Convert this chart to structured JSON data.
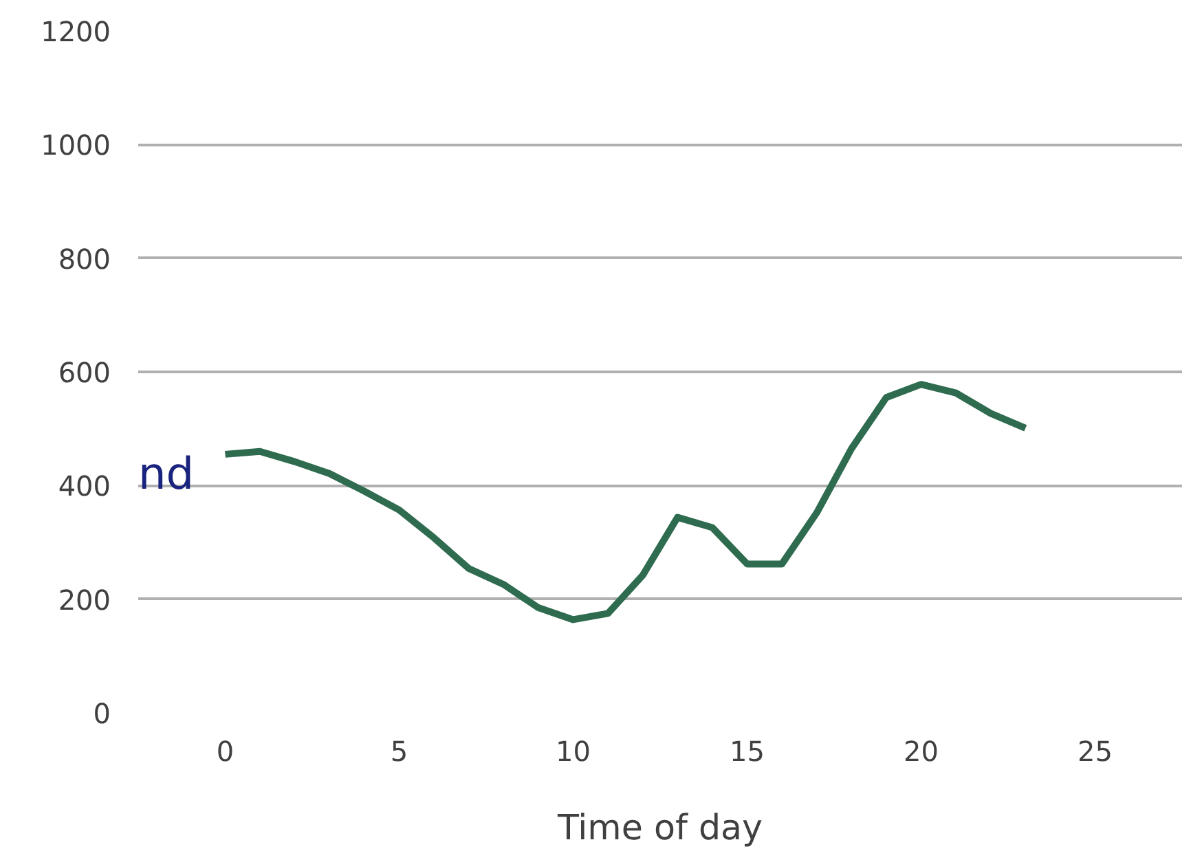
{
  "chart_data": {
    "type": "line",
    "xlabel": "Time of day",
    "annotations": [
      "nd"
    ],
    "x": [
      0,
      1,
      2,
      3,
      4,
      5,
      6,
      7,
      8,
      9,
      10,
      11,
      12,
      13,
      14,
      15,
      16,
      17,
      18,
      19,
      20,
      21,
      22,
      23
    ],
    "series": [
      {
        "color": "#2e6b4f",
        "values": [
          455,
          460,
          442,
          421,
          390,
          357,
          308,
          254,
          226,
          185,
          164,
          175,
          242,
          344,
          326,
          262,
          262,
          352,
          465,
          555,
          578,
          563,
          527,
          501
        ]
      }
    ],
    "xlim": [
      -2.5,
      27.5
    ],
    "ylim": [
      0,
      1200
    ],
    "xticks": [
      0,
      5,
      10,
      15,
      20,
      25
    ],
    "yticks": [
      0,
      200,
      400,
      600,
      800,
      1000,
      1200
    ],
    "grid": "y",
    "marker": "none",
    "line_style": "solid"
  }
}
